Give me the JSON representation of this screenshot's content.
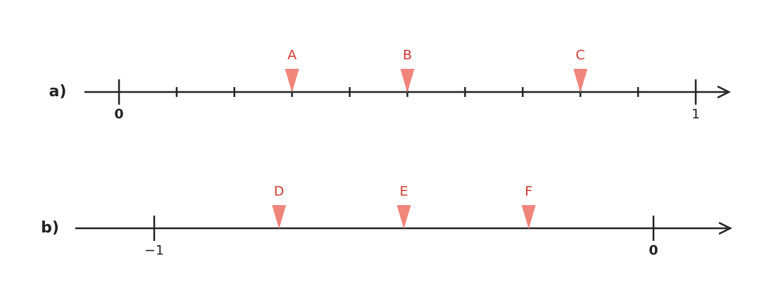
{
  "lines": [
    {
      "label": "a)",
      "range": [
        0,
        1
      ],
      "ticks": [
        0,
        0.1,
        0.2,
        0.3,
        0.4,
        0.5,
        0.6,
        0.7,
        0.8,
        0.9,
        1
      ],
      "tick_labels": [
        {
          "value": 0,
          "label": "0"
        },
        {
          "value": 1,
          "label": "1"
        }
      ],
      "markers": [
        {
          "label": "A",
          "value": 0.3
        },
        {
          "label": "B",
          "value": 0.5
        },
        {
          "label": "C",
          "value": 0.8
        }
      ]
    },
    {
      "label": "b)",
      "range": [
        -1,
        0
      ],
      "ticks": [
        -1,
        0
      ],
      "tick_labels": [
        {
          "value": -1,
          "label": "−1"
        },
        {
          "value": 0,
          "label": "0"
        }
      ],
      "markers": [
        {
          "label": "D",
          "value": -0.75
        },
        {
          "label": "E",
          "value": -0.5
        },
        {
          "label": "F",
          "value": -0.25
        }
      ]
    }
  ]
}
